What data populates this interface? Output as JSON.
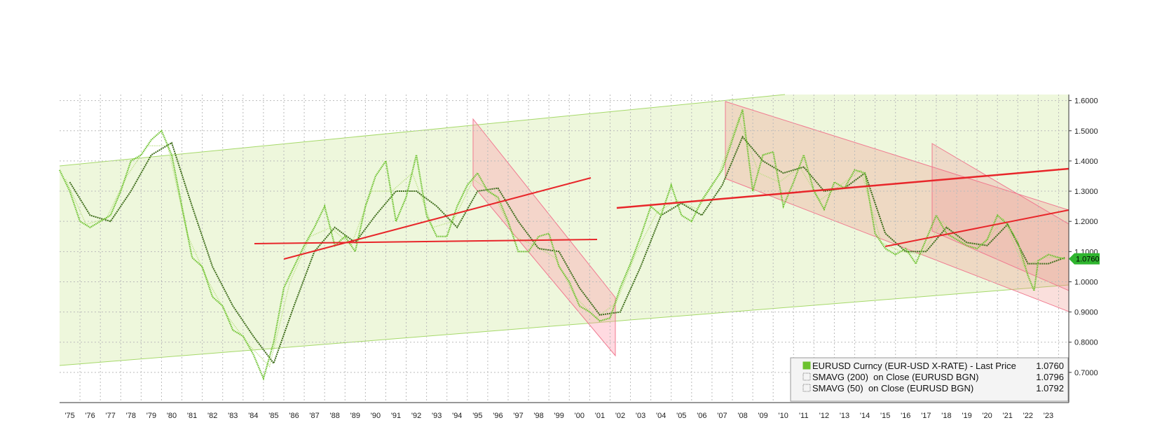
{
  "chart_data": {
    "type": "line",
    "xlim": [
      1975,
      2024.5
    ],
    "ylim": [
      0.6,
      1.62
    ],
    "grid": true,
    "xticks": [
      {
        "value": 1975.5,
        "label": "'75"
      },
      {
        "value": 1976.5,
        "label": "'76"
      },
      {
        "value": 1977.5,
        "label": "'77"
      },
      {
        "value": 1978.5,
        "label": "'78"
      },
      {
        "value": 1979.5,
        "label": "'79"
      },
      {
        "value": 1980.5,
        "label": "'80"
      },
      {
        "value": 1981.5,
        "label": "'81"
      },
      {
        "value": 1982.5,
        "label": "'82"
      },
      {
        "value": 1983.5,
        "label": "'83"
      },
      {
        "value": 1984.5,
        "label": "'84"
      },
      {
        "value": 1985.5,
        "label": "'85"
      },
      {
        "value": 1986.5,
        "label": "'86"
      },
      {
        "value": 1987.5,
        "label": "'87"
      },
      {
        "value": 1988.5,
        "label": "'88"
      },
      {
        "value": 1989.5,
        "label": "'89"
      },
      {
        "value": 1990.5,
        "label": "'90"
      },
      {
        "value": 1991.5,
        "label": "'91"
      },
      {
        "value": 1992.5,
        "label": "'92"
      },
      {
        "value": 1993.5,
        "label": "'93"
      },
      {
        "value": 1994.5,
        "label": "'94"
      },
      {
        "value": 1995.5,
        "label": "'95"
      },
      {
        "value": 1996.5,
        "label": "'96"
      },
      {
        "value": 1997.5,
        "label": "'97"
      },
      {
        "value": 1998.5,
        "label": "'98"
      },
      {
        "value": 1999.5,
        "label": "'99"
      },
      {
        "value": 2000.5,
        "label": "'00"
      },
      {
        "value": 2001.5,
        "label": "'01"
      },
      {
        "value": 2002.5,
        "label": "'02"
      },
      {
        "value": 2003.5,
        "label": "'03"
      },
      {
        "value": 2004.5,
        "label": "'04"
      },
      {
        "value": 2005.5,
        "label": "'05"
      },
      {
        "value": 2006.5,
        "label": "'06"
      },
      {
        "value": 2007.5,
        "label": "'07"
      },
      {
        "value": 2008.5,
        "label": "'08"
      },
      {
        "value": 2009.5,
        "label": "'09"
      },
      {
        "value": 2010.5,
        "label": "'10"
      },
      {
        "value": 2011.5,
        "label": "'11"
      },
      {
        "value": 2012.5,
        "label": "'12"
      },
      {
        "value": 2013.5,
        "label": "'13"
      },
      {
        "value": 2014.5,
        "label": "'14"
      },
      {
        "value": 2015.5,
        "label": "'15"
      },
      {
        "value": 2016.5,
        "label": "'16"
      },
      {
        "value": 2017.5,
        "label": "'17"
      },
      {
        "value": 2018.5,
        "label": "'18"
      },
      {
        "value": 2019.5,
        "label": "'19"
      },
      {
        "value": 2020.5,
        "label": "'20"
      },
      {
        "value": 2021.5,
        "label": "'21"
      },
      {
        "value": 2022.5,
        "label": "'22"
      },
      {
        "value": 2023.5,
        "label": "'23"
      }
    ],
    "yticks": [
      {
        "value": 0.7,
        "label": "0.7000"
      },
      {
        "value": 0.8,
        "label": "0.8000"
      },
      {
        "value": 0.9,
        "label": "0.9000"
      },
      {
        "value": 1.0,
        "label": "1.0000"
      },
      {
        "value": 1.1,
        "label": "1.1000"
      },
      {
        "value": 1.2,
        "label": "1.2000"
      },
      {
        "value": 1.3,
        "label": "1.3000"
      },
      {
        "value": 1.4,
        "label": "1.4000"
      },
      {
        "value": 1.5,
        "label": "1.5000"
      },
      {
        "value": 1.6,
        "label": "1.6000"
      }
    ],
    "series": [
      {
        "name": "EURUSD Curncy (EUR-USD X-RATE) - Last Price",
        "color": "#6cc22e",
        "last": {
          "value": 1.076,
          "label": "1.0760"
        },
        "x": [
          1975.0,
          1975.5,
          1976.0,
          1976.5,
          1977.0,
          1977.5,
          1978.0,
          1978.5,
          1979.0,
          1979.5,
          1980.0,
          1980.5,
          1981.0,
          1981.5,
          1982.0,
          1982.5,
          1983.0,
          1983.5,
          1984.0,
          1984.5,
          1985.0,
          1985.5,
          1986.0,
          1986.5,
          1987.0,
          1987.5,
          1988.0,
          1988.5,
          1989.0,
          1989.5,
          1990.0,
          1990.5,
          1991.0,
          1991.5,
          1992.0,
          1992.5,
          1993.0,
          1993.5,
          1994.0,
          1994.5,
          1995.0,
          1995.5,
          1996.0,
          1996.5,
          1997.0,
          1997.5,
          1998.0,
          1998.5,
          1999.0,
          1999.5,
          2000.0,
          2000.5,
          2001.0,
          2001.5,
          2002.0,
          2002.5,
          2003.0,
          2003.5,
          2004.0,
          2004.5,
          2005.0,
          2005.5,
          2006.0,
          2006.5,
          2007.0,
          2007.5,
          2008.0,
          2008.5,
          2009.0,
          2009.5,
          2010.0,
          2010.5,
          2011.0,
          2011.5,
          2012.0,
          2012.5,
          2013.0,
          2013.5,
          2014.0,
          2014.5,
          2015.0,
          2015.5,
          2016.0,
          2016.5,
          2017.0,
          2017.5,
          2018.0,
          2018.5,
          2019.0,
          2019.5,
          2020.0,
          2020.5,
          2021.0,
          2021.5,
          2022.0,
          2022.5,
          2022.8,
          2023.0,
          2023.5,
          2024.0,
          2024.3
        ],
        "values": [
          1.37,
          1.3,
          1.2,
          1.18,
          1.2,
          1.22,
          1.3,
          1.4,
          1.42,
          1.47,
          1.5,
          1.42,
          1.25,
          1.08,
          1.05,
          0.95,
          0.92,
          0.84,
          0.82,
          0.76,
          0.68,
          0.8,
          0.98,
          1.05,
          1.12,
          1.18,
          1.25,
          1.12,
          1.15,
          1.1,
          1.25,
          1.35,
          1.4,
          1.2,
          1.28,
          1.42,
          1.22,
          1.15,
          1.15,
          1.25,
          1.32,
          1.36,
          1.3,
          1.28,
          1.2,
          1.1,
          1.1,
          1.15,
          1.16,
          1.05,
          1.0,
          0.92,
          0.9,
          0.87,
          0.88,
          0.98,
          1.06,
          1.15,
          1.25,
          1.22,
          1.32,
          1.22,
          1.2,
          1.27,
          1.32,
          1.37,
          1.47,
          1.57,
          1.3,
          1.42,
          1.43,
          1.25,
          1.33,
          1.42,
          1.3,
          1.24,
          1.33,
          1.31,
          1.37,
          1.36,
          1.16,
          1.11,
          1.09,
          1.11,
          1.06,
          1.14,
          1.22,
          1.16,
          1.14,
          1.12,
          1.11,
          1.14,
          1.22,
          1.19,
          1.13,
          1.02,
          0.97,
          1.07,
          1.09,
          1.08,
          1.076
        ]
      },
      {
        "name": "SMAVG (200)  on Close (EURUSD BGN)",
        "color": "#3f6e1c",
        "last": {
          "value": 1.0796,
          "label": "1.0796"
        },
        "x": [
          1975.5,
          1976.5,
          1977.5,
          1978.5,
          1979.5,
          1980.5,
          1981.5,
          1982.5,
          1983.5,
          1984.5,
          1985.5,
          1986.5,
          1987.5,
          1988.5,
          1989.5,
          1990.5,
          1991.5,
          1992.5,
          1993.5,
          1994.5,
          1995.5,
          1996.5,
          1997.5,
          1998.5,
          1999.5,
          2000.5,
          2001.5,
          2002.5,
          2003.5,
          2004.5,
          2005.5,
          2006.5,
          2007.5,
          2008.5,
          2009.5,
          2010.5,
          2011.5,
          2012.5,
          2013.5,
          2014.5,
          2015.5,
          2016.5,
          2017.5,
          2018.5,
          2019.5,
          2020.5,
          2021.5,
          2022.5,
          2023.5,
          2024.3
        ],
        "values": [
          1.33,
          1.22,
          1.2,
          1.3,
          1.42,
          1.46,
          1.25,
          1.05,
          0.92,
          0.82,
          0.73,
          0.92,
          1.1,
          1.18,
          1.13,
          1.22,
          1.3,
          1.3,
          1.25,
          1.18,
          1.3,
          1.31,
          1.2,
          1.11,
          1.1,
          0.98,
          0.89,
          0.9,
          1.05,
          1.22,
          1.26,
          1.22,
          1.32,
          1.48,
          1.4,
          1.36,
          1.38,
          1.3,
          1.31,
          1.36,
          1.16,
          1.1,
          1.1,
          1.18,
          1.13,
          1.12,
          1.19,
          1.06,
          1.06,
          1.0796
        ]
      },
      {
        "name": "SMAVG (50)  on Close (EURUSD BGN)",
        "color": "#b5dd7a",
        "last": {
          "value": 1.0792,
          "label": "1.0792"
        },
        "x": [
          1975.3,
          1976.3,
          1977.3,
          1978.3,
          1979.3,
          1980.3,
          1981.3,
          1982.3,
          1983.3,
          1984.3,
          1985.3,
          1986.3,
          1987.3,
          1988.3,
          1989.3,
          1990.3,
          1991.3,
          1992.3,
          1993.3,
          1994.3,
          1995.3,
          1996.3,
          1997.3,
          1998.3,
          1999.3,
          2000.3,
          2001.3,
          2002.3,
          2003.3,
          2004.3,
          2005.3,
          2006.3,
          2007.3,
          2008.3,
          2009.3,
          2010.3,
          2011.3,
          2012.3,
          2013.3,
          2014.3,
          2015.3,
          2016.3,
          2017.3,
          2018.3,
          2019.3,
          2020.3,
          2021.3,
          2022.3,
          2023.3,
          2024.3
        ],
        "values": [
          1.34,
          1.19,
          1.21,
          1.35,
          1.45,
          1.45,
          1.15,
          1.0,
          0.88,
          0.79,
          0.72,
          1.0,
          1.15,
          1.18,
          1.12,
          1.3,
          1.3,
          1.36,
          1.18,
          1.2,
          1.34,
          1.29,
          1.15,
          1.12,
          1.08,
          0.95,
          0.88,
          0.93,
          1.1,
          1.23,
          1.27,
          1.24,
          1.35,
          1.54,
          1.36,
          1.33,
          1.38,
          1.27,
          1.32,
          1.37,
          1.13,
          1.1,
          1.09,
          1.2,
          1.13,
          1.12,
          1.21,
          1.05,
          1.08,
          1.0792
        ]
      }
    ]
  }
}
